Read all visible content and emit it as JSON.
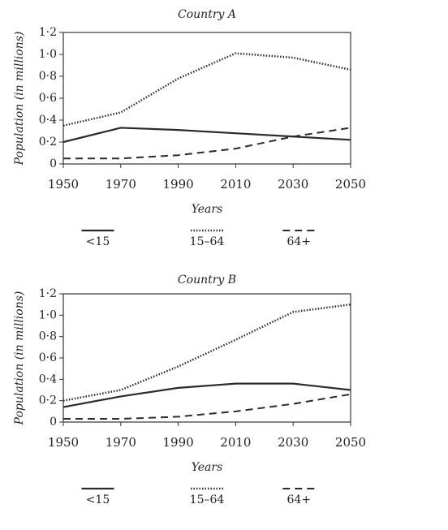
{
  "chart_data": [
    {
      "type": "line",
      "title": "Country A",
      "xlabel": "Years",
      "ylabel": "Population (in millions)",
      "x": [
        1950,
        1970,
        1990,
        2010,
        2030,
        2050
      ],
      "series": [
        {
          "name": "<15",
          "color": "#2a2a2a",
          "dash": "solid",
          "values": [
            0.2,
            0.33,
            0.31,
            0.28,
            0.25,
            0.22
          ]
        },
        {
          "name": "15–64",
          "color": "#2a2a2a",
          "dash": "dotted",
          "values": [
            0.35,
            0.47,
            0.78,
            1.01,
            0.97,
            0.86
          ]
        },
        {
          "name": "64+",
          "color": "#2a2a2a",
          "dash": "dashed",
          "values": [
            0.05,
            0.05,
            0.08,
            0.14,
            0.25,
            0.33
          ]
        }
      ],
      "xlim": [
        1950,
        2050
      ],
      "xticks": [
        1950,
        1970,
        1990,
        2010,
        2030,
        2050
      ],
      "ylim": [
        0,
        1.2
      ],
      "yticks": [
        0,
        {
          "value": 0.2,
          "label": "0·2"
        },
        {
          "value": 0.4,
          "label": "0·4"
        },
        {
          "value": 0.6,
          "label": "0·6"
        },
        {
          "value": 0.8,
          "label": "0·8"
        },
        {
          "value": 1.0,
          "label": "1·0"
        },
        {
          "value": 1.2,
          "label": "1·2"
        }
      ]
    },
    {
      "type": "line",
      "title": "Country B",
      "xlabel": "Years",
      "ylabel": "Population (in millions)",
      "x": [
        1950,
        1970,
        1990,
        2010,
        2030,
        2050
      ],
      "series": [
        {
          "name": "<15",
          "color": "#2a2a2a",
          "dash": "solid",
          "values": [
            0.14,
            0.24,
            0.32,
            0.36,
            0.36,
            0.3
          ]
        },
        {
          "name": "15–64",
          "color": "#2a2a2a",
          "dash": "dotted",
          "values": [
            0.2,
            0.3,
            0.52,
            0.77,
            1.03,
            1.1
          ]
        },
        {
          "name": "64+",
          "color": "#2a2a2a",
          "dash": "dashed",
          "values": [
            0.03,
            0.03,
            0.05,
            0.1,
            0.17,
            0.26
          ]
        }
      ],
      "xlim": [
        1950,
        2050
      ],
      "xticks": [
        1950,
        1970,
        1990,
        2010,
        2030,
        2050
      ],
      "ylim": [
        0,
        1.2
      ],
      "yticks": [
        0,
        {
          "value": 0.2,
          "label": "0·2"
        },
        {
          "value": 0.4,
          "label": "0·4"
        },
        {
          "value": 0.6,
          "label": "0·6"
        },
        {
          "value": 0.8,
          "label": "0·8"
        },
        {
          "value": 1.0,
          "label": "1·0"
        },
        {
          "value": 1.2,
          "label": "1·2"
        }
      ]
    }
  ]
}
